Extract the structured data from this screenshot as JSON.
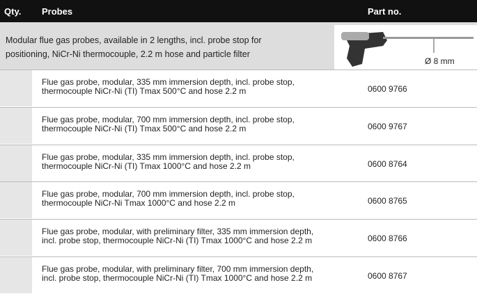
{
  "header": {
    "qty": "Qty.",
    "probes": "Probes",
    "part_no": "Part no."
  },
  "section": {
    "lines": [
      "Modular flue gas probes, available in 2 lengths, incl. probe stop for",
      "positioning, NiCr-Ni thermocouple, 2.2 m hose and particle filter"
    ],
    "diameter": "Ø 8 mm"
  },
  "rows": [
    {
      "lines": [
        "Flue gas probe, modular, 335 mm immersion depth, incl. probe stop,",
        "thermocouple NiCr-Ni (TI) Tmax 500°C and hose 2.2 m"
      ],
      "part_no": "0600 9766"
    },
    {
      "lines": [
        "Flue gas probe, modular, 700 mm immersion depth, incl. probe stop,",
        "thermocouple NiCr-Ni (TI) Tmax 500°C and hose 2.2 m"
      ],
      "part_no": "0600 9767"
    },
    {
      "lines": [
        "Flue gas probe, modular, 335 mm immersion depth, incl. probe stop,",
        "thermocouple NiCr-Ni (TI) Tmax 1000°C and hose 2.2 m"
      ],
      "part_no": "0600 8764"
    },
    {
      "lines": [
        "Flue gas probe, modular, 700 mm immersion depth, incl. probe stop,",
        "thermocouple NiCr-Ni Tmax 1000°C and hose 2.2 m"
      ],
      "part_no": "0600 8765"
    },
    {
      "lines": [
        "Flue gas probe, modular, with preliminary filter, 335 mm immersion depth,",
        "incl. probe stop, thermocouple NiCr-Ni (TI) Tmax 1000°C and hose 2.2 m"
      ],
      "part_no": "0600 8766"
    },
    {
      "lines": [
        "Flue gas probe, modular, with preliminary filter, 700 mm immersion depth,",
        "incl. probe stop, thermocouple NiCr-Ni (TI) Tmax 1000°C and hose 2.2 m"
      ],
      "part_no": "0600 8767"
    }
  ]
}
